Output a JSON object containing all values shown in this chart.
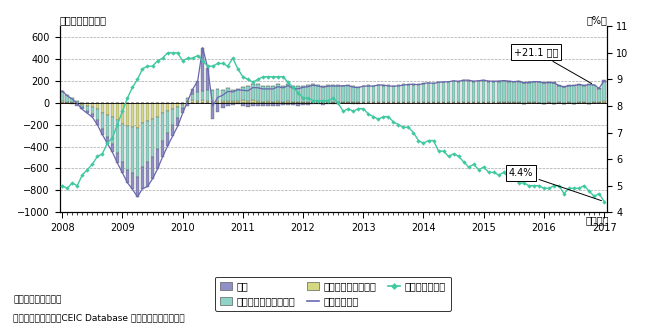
{
  "title_left": "（前月比、千人）",
  "title_right": "（%）",
  "xlabel": "（年月）",
  "ylim_left": [
    -1000,
    700
  ],
  "ylim_right": [
    4,
    11
  ],
  "yticks_left": [
    -1000,
    -800,
    -600,
    -400,
    -200,
    0,
    200,
    400,
    600
  ],
  "yticks_right": [
    4,
    5,
    6,
    7,
    8,
    9,
    10,
    11
  ],
  "annotation1_text": "+21.1 万人",
  "annotation2_text": "4.4%",
  "note1": "備考：季節調整値。",
  "note2": "資料：米国労働省、CEIC Database から経済産業省作成。",
  "gov_color": "#9090c8",
  "service_color": "#90d4c8",
  "mfg_color": "#d4d880",
  "total_line_color": "#6868b0",
  "unemp_color": "#40c8a0",
  "unemp_marker_color": "#40c8a0",
  "bg_color": "#ffffff",
  "grid_color": "#909090",
  "bar_edgecolor": "#404040",
  "legend_gov": "政府",
  "legend_svc": "民間（サービス部門）",
  "legend_mfg": "民間（財生産部門）",
  "legend_total": "雇用者数増減",
  "legend_unemp": "失業率（右軸）"
}
